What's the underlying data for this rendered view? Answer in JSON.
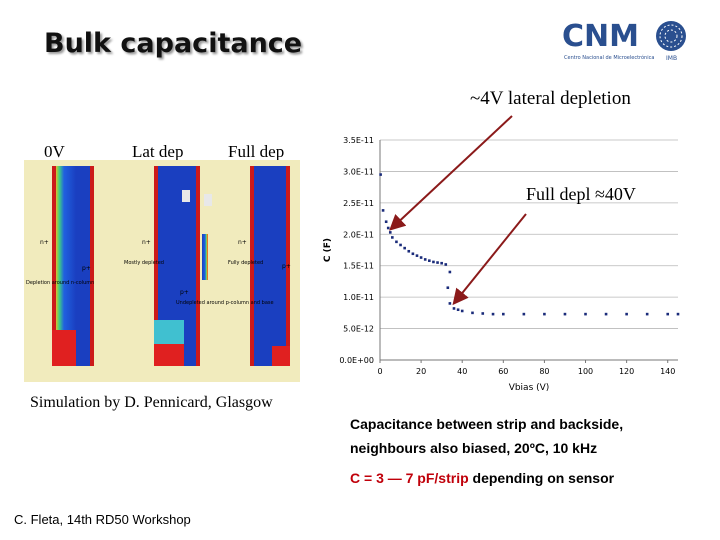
{
  "slide": {
    "title": "Bulk capacitance",
    "logo": {
      "name": "CNM",
      "subtitle": "Centro Nacional de Microelectrónica",
      "org": "IMB"
    },
    "simulation": {
      "labels": [
        "0V",
        "Lat dep",
        "Full dep"
      ],
      "credit": "Simulation by D. Pennicard, Glasgow",
      "inset_labels": [
        "n+",
        "p+",
        "Depletion around n-column",
        "Mostly depleted",
        "Fully depleted",
        "Undepleted around p-column and base"
      ]
    },
    "annotations": {
      "lateral": "~4V lateral depletion",
      "full": "Full depl ≈40V"
    },
    "description": {
      "line1": "Capacitance between strip and backside,",
      "line2": "neighbours also biased, 20ºC, 10 kHz",
      "formula_prefix": "C = 3 ― 7 pF/strip",
      "formula_suffix": " depending on sensor"
    },
    "footer": "C. Fleta, 14th RD50 Workshop"
  },
  "chart_data": {
    "type": "scatter",
    "xlabel": "Vbias (V)",
    "ylabel": "C (F)",
    "xlim": [
      0,
      145
    ],
    "ylim": [
      0,
      3.5e-11
    ],
    "xticks": [
      0,
      20,
      40,
      60,
      80,
      100,
      120,
      140
    ],
    "yticks": [
      0,
      5e-12,
      1e-11,
      1.5e-11,
      2e-11,
      2.5e-11,
      3e-11,
      3.5e-11
    ],
    "xtick_labels": [
      "0",
      "20",
      "40",
      "60",
      "80",
      "100",
      "120",
      "140"
    ],
    "ytick_labels": [
      "0.0E+00",
      "5.0E-12",
      "1.0E-11",
      "1.5E-11",
      "2.0E-11",
      "2.5E-11",
      "3.0E-11",
      "3.5E-11"
    ],
    "grid": "horizontal",
    "series": [
      {
        "color": "#1a2b7a",
        "x": [
          0.3,
          1.5,
          3,
          4,
          5,
          6,
          8,
          10,
          12,
          14,
          16,
          18,
          20,
          22,
          24,
          26,
          28,
          30,
          32,
          34,
          33,
          34,
          36,
          38,
          40,
          45,
          50,
          55,
          60,
          70,
          80,
          90,
          100,
          110,
          120,
          130,
          140,
          145
        ],
        "y": [
          2.95e-11,
          2.38e-11,
          2.2e-11,
          2.1e-11,
          2.03e-11,
          1.95e-11,
          1.88e-11,
          1.83e-11,
          1.78e-11,
          1.73e-11,
          1.69e-11,
          1.66e-11,
          1.63e-11,
          1.6e-11,
          1.58e-11,
          1.56e-11,
          1.55e-11,
          1.54e-11,
          1.52e-11,
          1.4e-11,
          1.15e-11,
          9e-12,
          8.2e-12,
          8e-12,
          7.8e-12,
          7.5e-12,
          7.4e-12,
          7.3e-12,
          7.3e-12,
          7.3e-12,
          7.3e-12,
          7.3e-12,
          7.3e-12,
          7.3e-12,
          7.3e-12,
          7.3e-12,
          7.3e-12,
          7.3e-12
        ]
      }
    ]
  }
}
